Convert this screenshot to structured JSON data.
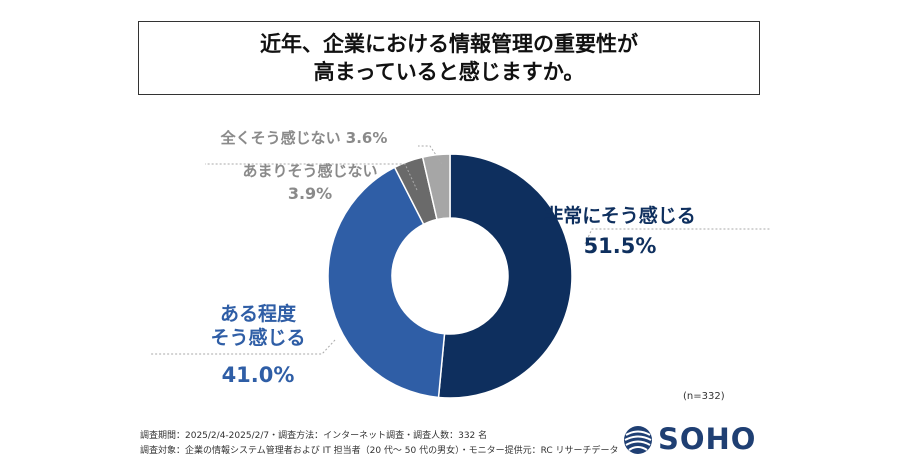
{
  "title": {
    "line1": "近年、企業における情報管理の重要性が",
    "line2": "高まっていると感じますか。"
  },
  "chart_data": {
    "type": "pie",
    "title": "近年、企業における情報管理の重要性が高まっていると感じますか。",
    "categories": [
      "非常にそう感じる",
      "ある程度そう感じる",
      "あまりそう感じない",
      "全くそう感じない"
    ],
    "values": [
      51.5,
      41.0,
      3.9,
      3.6
    ],
    "unit": "%",
    "colors": [
      "#0e2f5e",
      "#2f5ea6",
      "#6a6a6a",
      "#a6a6a6"
    ],
    "labels": [
      {
        "lines": [
          "非常にそう感じる"
        ],
        "value_text": "51.5%",
        "color": "#0e2f5e"
      },
      {
        "lines": [
          "ある程度",
          "そう感じる"
        ],
        "value_text": "41.0%",
        "color": "#2f5ea6"
      },
      {
        "lines": [
          "あまりそう感じない"
        ],
        "value_text": "3.9%",
        "color": "#8a8a8a"
      },
      {
        "lines": [
          "全くそう感じない"
        ],
        "value_text": "3.6%",
        "color": "#8a8a8a"
      }
    ]
  },
  "sample_size": "(n=332)",
  "footer": {
    "line1": "調査期間：2025/2/4-2025/2/7・調査方法：インターネット調査・調査人数：332 名",
    "line2": "調査対象：企業の情報システム管理者および IT 担当者（20 代〜 50 代の男女）・モニター提供元：RC リサーチデータ"
  },
  "logo": {
    "text": "SOHO"
  }
}
